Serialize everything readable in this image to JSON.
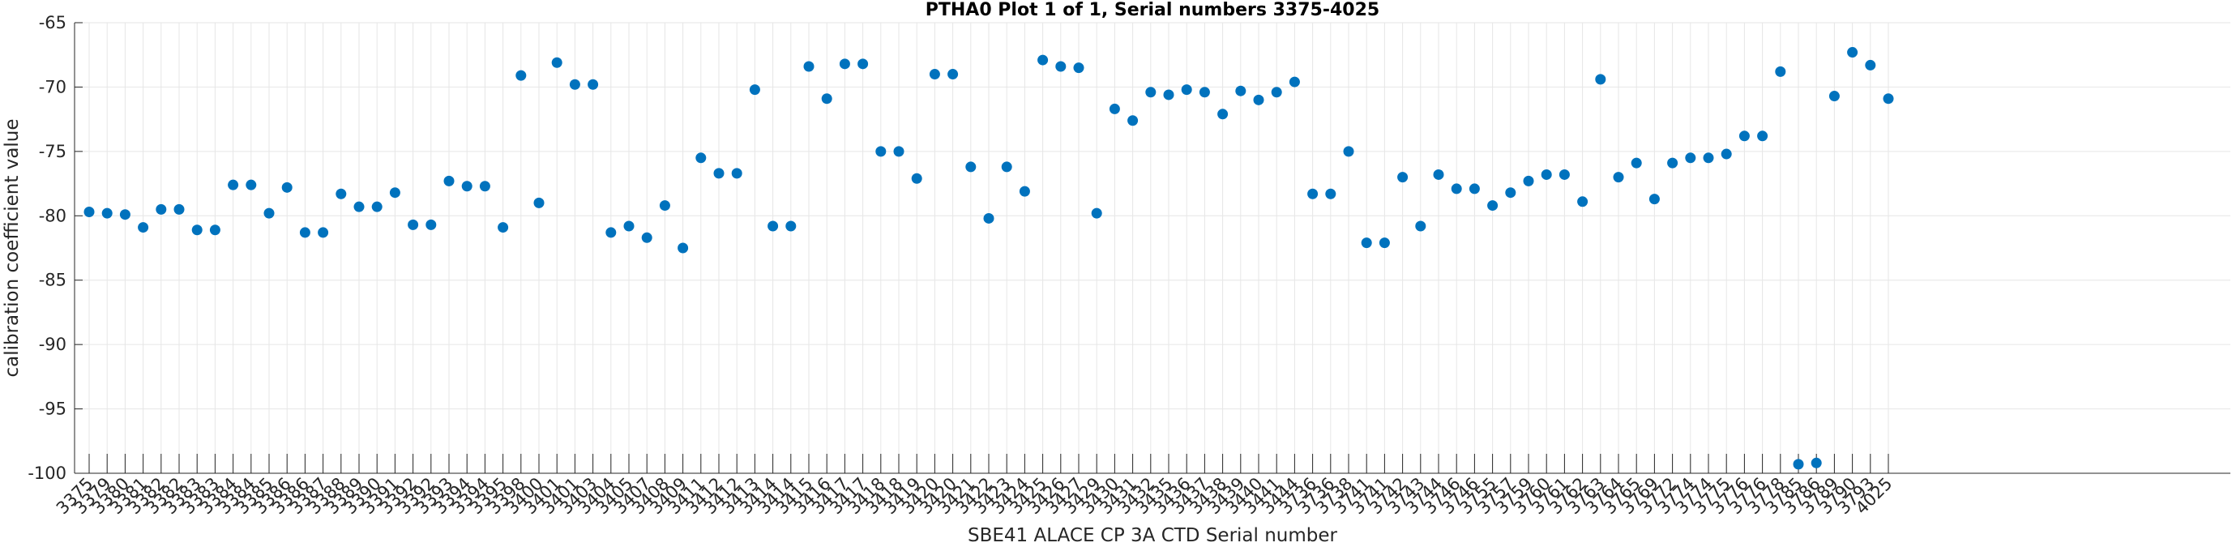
{
  "chart_data": {
    "type": "scatter",
    "title": "PTHA0 Plot 1 of 1, Serial numbers 3375-4025",
    "xlabel": "SBE41 ALACE CP 3A CTD Serial number",
    "ylabel": "calibration coefficient value",
    "ylim": [
      -100,
      -65
    ],
    "yticks": [
      -65,
      -70,
      -75,
      -80,
      -85,
      -90,
      -95,
      -100
    ],
    "grid": true,
    "marker_color": "#0072bd",
    "categories": [
      "3375",
      "3379",
      "3380",
      "3381",
      "3382",
      "3382",
      "3383",
      "3383",
      "3384",
      "3384",
      "3385",
      "3386",
      "3386",
      "3387",
      "3388",
      "3389",
      "3390",
      "3391",
      "3392",
      "3392",
      "3393",
      "3394",
      "3394",
      "3395",
      "3398",
      "3400",
      "3401",
      "3401",
      "3403",
      "3404",
      "3405",
      "3407",
      "3408",
      "3409",
      "3411",
      "3412",
      "3412",
      "3413",
      "3414",
      "3414",
      "3415",
      "3416",
      "3417",
      "3417",
      "3418",
      "3418",
      "3419",
      "3420",
      "3420",
      "3421",
      "3422",
      "3423",
      "3424",
      "3425",
      "3426",
      "3427",
      "3429",
      "3430",
      "3431",
      "3432",
      "3435",
      "3436",
      "3437",
      "3438",
      "3439",
      "3440",
      "3441",
      "3444",
      "3736",
      "3736",
      "3738",
      "3741",
      "3741",
      "3742",
      "3743",
      "3744",
      "3746",
      "3746",
      "3755",
      "3757",
      "3759",
      "3760",
      "3761",
      "3762",
      "3763",
      "3764",
      "3765",
      "3769",
      "3772",
      "3774",
      "3774",
      "3775",
      "3776",
      "3776",
      "3778",
      "3785",
      "3786",
      "3789",
      "3790",
      "3793",
      "4025"
    ],
    "values": [
      -79.7,
      -79.8,
      -79.9,
      -80.9,
      -79.5,
      -79.5,
      -81.1,
      -81.1,
      -77.6,
      -77.6,
      -79.8,
      -77.8,
      -81.3,
      -81.3,
      -78.3,
      -79.3,
      -79.3,
      -78.2,
      -80.7,
      -80.7,
      -77.3,
      -77.7,
      -77.7,
      -80.9,
      -69.1,
      -79.0,
      -68.1,
      -69.8,
      -69.8,
      -81.3,
      -80.8,
      -81.7,
      -79.2,
      -82.5,
      -75.5,
      -76.7,
      -76.7,
      -70.2,
      -80.8,
      -80.8,
      -68.4,
      -70.9,
      -68.2,
      -68.2,
      -75.0,
      -75.0,
      -77.1,
      -69.0,
      -69.0,
      -76.2,
      -80.2,
      -76.2,
      -78.1,
      -67.9,
      -68.4,
      -68.5,
      -79.8,
      -71.7,
      -72.6,
      -70.4,
      -70.6,
      -70.2,
      -70.4,
      -72.1,
      -70.3,
      -71.0,
      -70.4,
      -69.6,
      -78.3,
      -78.3,
      -75.0,
      -82.1,
      -82.1,
      -77.0,
      -80.8,
      -76.8,
      -77.9,
      -77.9,
      -79.2,
      -78.2,
      -77.3,
      -76.8,
      -76.8,
      -78.9,
      -69.4,
      -77.0,
      -75.9,
      -78.7,
      -75.9,
      -75.5,
      -75.5,
      -75.2,
      -73.8,
      -73.8,
      -68.8,
      -99.3,
      -99.2,
      -70.7,
      -67.3,
      -68.3,
      -70.9
    ]
  }
}
